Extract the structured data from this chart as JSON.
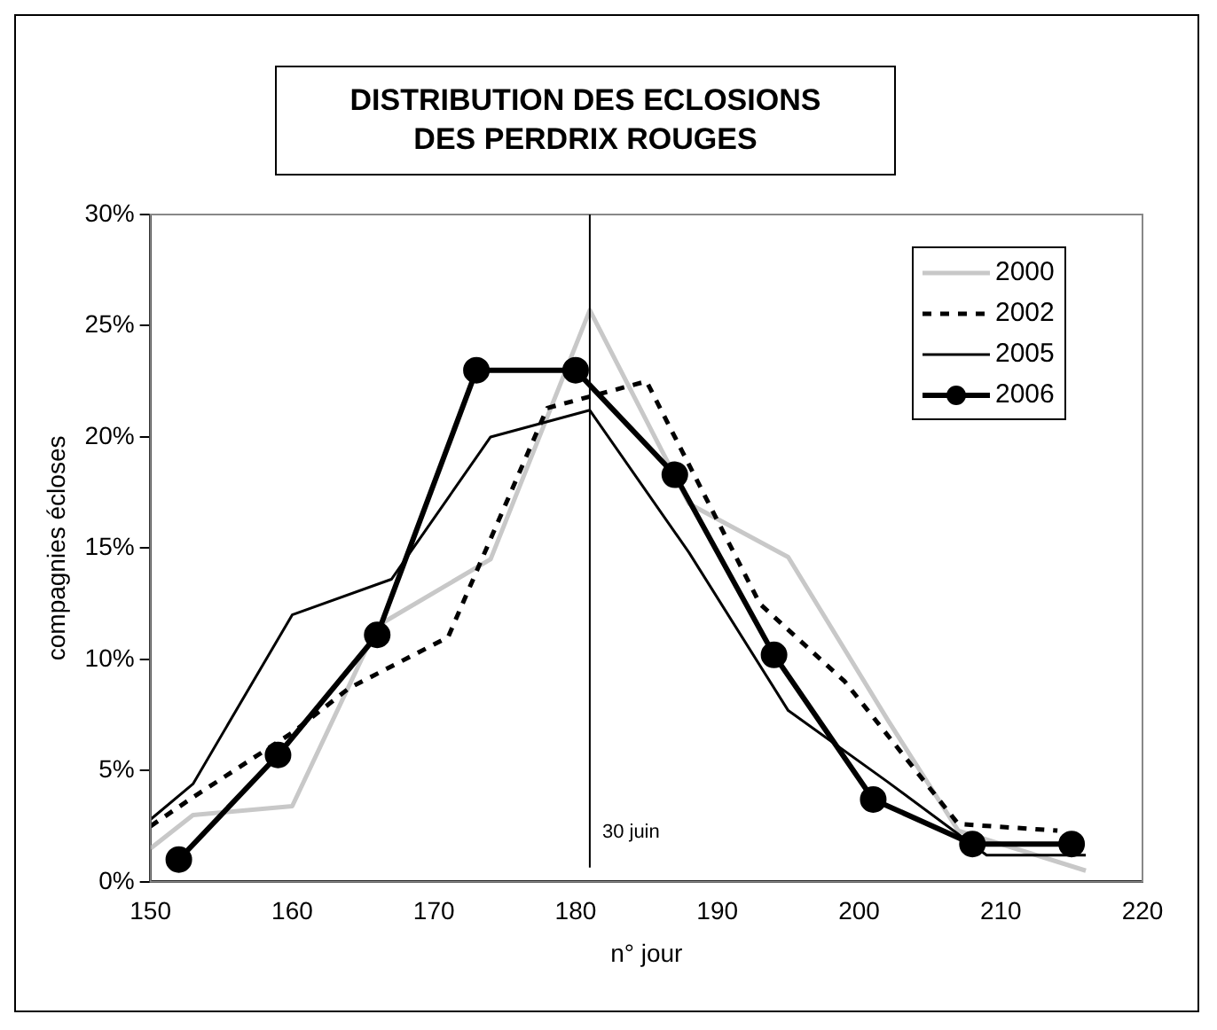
{
  "chart_data": {
    "type": "line",
    "title": "DISTRIBUTION DES ECLOSIONS\nDES PERDRIX ROUGES",
    "xlabel": "n° jour",
    "ylabel": "compagnies écloses",
    "xlim": [
      150,
      220
    ],
    "xticks": [
      150,
      160,
      170,
      180,
      190,
      200,
      210,
      220
    ],
    "ylim": [
      0,
      30
    ],
    "yticks": [
      {
        "value": 0,
        "label": "0%"
      },
      {
        "value": 5,
        "label": "5%"
      },
      {
        "value": 10,
        "label": "10%"
      },
      {
        "value": 15,
        "label": "15%"
      },
      {
        "value": 20,
        "label": "20%"
      },
      {
        "value": 25,
        "label": "25%"
      },
      {
        "value": 30,
        "label": "30%"
      }
    ],
    "grid": false,
    "legend": "top right",
    "ref_lines": [
      {
        "axis": "x",
        "value": 181,
        "label": "30 juin",
        "color": "#000000"
      }
    ],
    "series": [
      {
        "name": "2000",
        "color": "#c8c8c8",
        "line_style": "solid",
        "marker": "none",
        "x": [
          150,
          153,
          160,
          166,
          174,
          181,
          188,
          195,
          202,
          207,
          216
        ],
        "values": [
          1.5,
          3.0,
          3.4,
          11.5,
          14.5,
          25.7,
          17.0,
          14.6,
          7.3,
          2.3,
          0.5
        ]
      },
      {
        "name": "2002",
        "color": "#000000",
        "line_style": "dashed",
        "marker": "none",
        "x": [
          150,
          153,
          160,
          164,
          171,
          178,
          185,
          193,
          199,
          207,
          214
        ],
        "values": [
          2.5,
          3.8,
          6.7,
          8.7,
          11.0,
          21.3,
          22.5,
          12.5,
          9.0,
          2.6,
          2.3
        ]
      },
      {
        "name": "2005",
        "color": "#000000",
        "line_style": "solid",
        "marker": "none",
        "x": [
          150,
          153,
          160,
          167,
          174,
          181,
          188,
          195,
          202,
          209,
          216
        ],
        "values": [
          2.8,
          4.4,
          12.0,
          13.6,
          20.0,
          21.2,
          14.8,
          7.7,
          4.5,
          1.2,
          1.2
        ]
      },
      {
        "name": "2006",
        "color": "#000000",
        "line_style": "solid",
        "marker": "circle",
        "x": [
          152,
          159,
          166,
          173,
          180,
          187,
          194,
          201,
          208,
          215
        ],
        "values": [
          1.0,
          5.7,
          11.1,
          23.0,
          23.0,
          18.3,
          10.2,
          3.7,
          1.7,
          1.7
        ]
      }
    ]
  }
}
